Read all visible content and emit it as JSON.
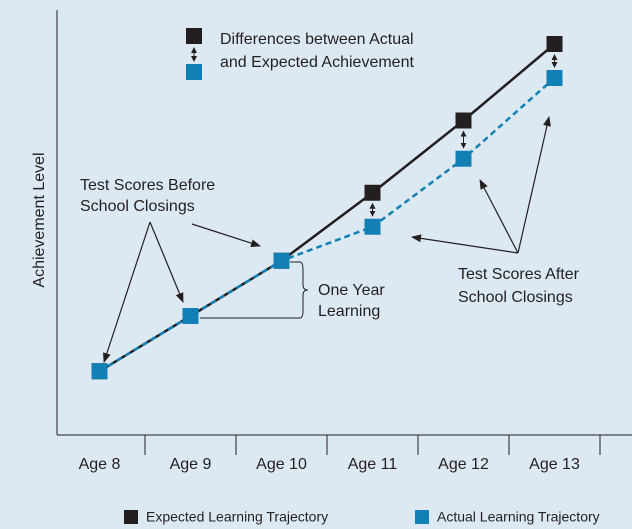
{
  "chart_data": {
    "type": "line",
    "y_label": "Achievement Level",
    "categories": [
      "Age 8",
      "Age 9",
      "Age 10",
      "Age 11",
      "Age 12",
      "Age 13"
    ],
    "series": [
      {
        "name": "Expected Learning Trajectory",
        "color": "#231f20",
        "values": [
          15,
          28,
          41,
          57,
          74,
          92
        ]
      },
      {
        "name": "Actual Learning Trajectory",
        "color": "#1380b5",
        "values": [
          15,
          28,
          41,
          49,
          65,
          84
        ]
      }
    ],
    "ylim": [
      0,
      100
    ],
    "key_text": [
      "Differences between Actual",
      "and Expected Achievement"
    ],
    "annotations": [
      [
        "Test Scores Before",
        "School Closings"
      ],
      [
        "One Year",
        "Learning"
      ],
      [
        "Test Scores After",
        "School Closings"
      ]
    ]
  }
}
